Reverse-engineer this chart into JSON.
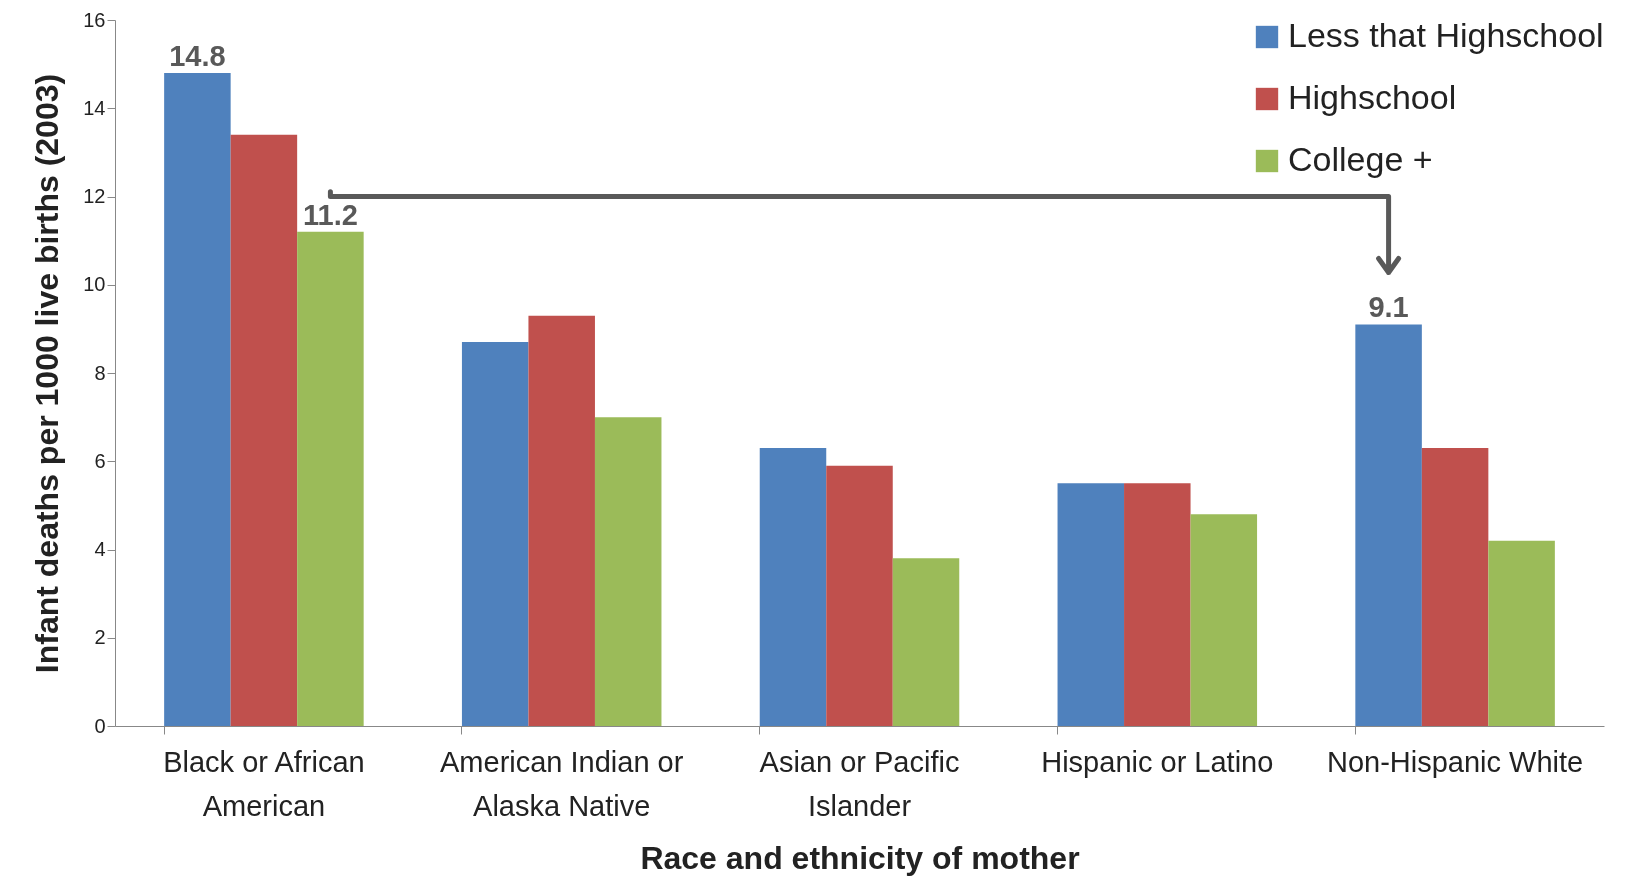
{
  "chart_data": {
    "type": "bar",
    "xlabel": "Race and ethnicity of mother",
    "ylabel": "Infant deaths per 1000 live births (2003)",
    "categories": [
      "Black or African American",
      "American Indian or Alaska Native",
      "Asian or Pacific Islander",
      "Hispanic or Latino",
      "Non-Hispanic White"
    ],
    "series": [
      {
        "name": "Less that Highschool",
        "color": "#4f81bd",
        "values": [
          14.8,
          8.7,
          6.3,
          5.5,
          9.1
        ],
        "value_labels": [
          "14.8",
          null,
          null,
          null,
          "9.1"
        ]
      },
      {
        "name": "Highschool",
        "color": "#c0504d",
        "values": [
          13.4,
          9.3,
          5.9,
          5.5,
          6.3
        ]
      },
      {
        "name": "College +",
        "color": "#9bbb59",
        "values": [
          11.2,
          7.0,
          3.8,
          4.8,
          4.2
        ],
        "value_labels": [
          "11.2",
          null,
          null,
          null,
          null
        ]
      }
    ],
    "ylim": [
      0,
      16
    ],
    "yticks": [
      0,
      2,
      4,
      6,
      8,
      10,
      12,
      14,
      16
    ],
    "grid": false,
    "legend": "top right"
  }
}
